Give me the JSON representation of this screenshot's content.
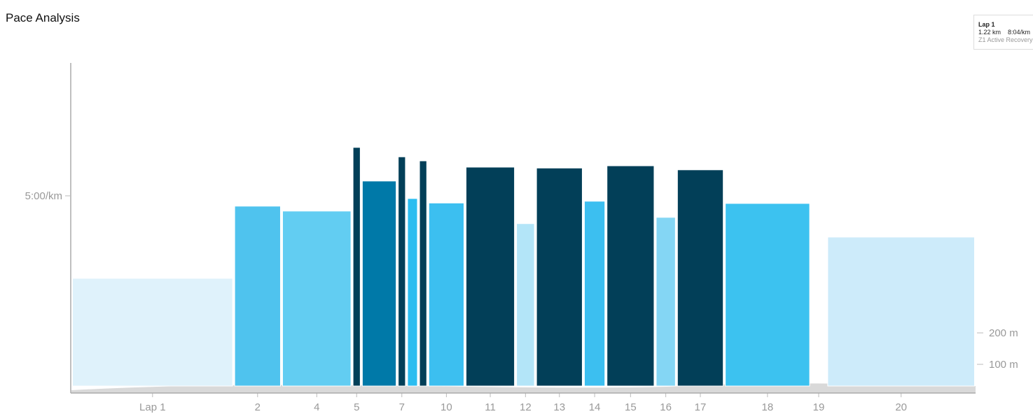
{
  "title": "Pace Analysis",
  "tooltip": {
    "lap": "Lap 1",
    "distance": "1.22 km",
    "pace": "8:04/km",
    "zone": "Z1 Active Recovery"
  },
  "chart_data": {
    "type": "bar",
    "title": "Pace Analysis",
    "y_left": {
      "ticks": [
        {
          "label": "5:00/km",
          "pace_s": 300
        }
      ]
    },
    "y_right": {
      "ticks": [
        {
          "label": "200 m",
          "value": 200
        },
        {
          "label": "100 m",
          "value": 100
        }
      ]
    },
    "laps": [
      {
        "label": "Lap 1",
        "distance_km": 1.22,
        "pace_s": 484,
        "color": "#dff2fb"
      },
      {
        "label": "2",
        "distance_km": 0.36,
        "pace_s": 323,
        "color": "#4fc3ee"
      },
      {
        "label": "",
        "distance_km": 0.0,
        "pace_s": 0,
        "color": "#ffffff"
      },
      {
        "label": "4",
        "distance_km": 0.53,
        "pace_s": 334,
        "color": "#62cdf2"
      },
      {
        "label": "5",
        "distance_km": 0.07,
        "pace_s": 192,
        "color": "#023f58"
      },
      {
        "label": "",
        "distance_km": 0.27,
        "pace_s": 267,
        "color": "#0079a8"
      },
      {
        "label": "7",
        "distance_km": 0.07,
        "pace_s": 213,
        "color": "#023f58"
      },
      {
        "label": "",
        "distance_km": 0.09,
        "pace_s": 306,
        "color": "#2bbdf0"
      },
      {
        "label": "",
        "distance_km": 0.07,
        "pace_s": 222,
        "color": "#023f58"
      },
      {
        "label": "10",
        "distance_km": 0.28,
        "pace_s": 316,
        "color": "#3cbff0"
      },
      {
        "label": "11",
        "distance_km": 0.38,
        "pace_s": 236,
        "color": "#023f58"
      },
      {
        "label": "12",
        "distance_km": 0.15,
        "pace_s": 362,
        "color": "#b3e5f8"
      },
      {
        "label": "13",
        "distance_km": 0.36,
        "pace_s": 238,
        "color": "#023f58"
      },
      {
        "label": "14",
        "distance_km": 0.17,
        "pace_s": 312,
        "color": "#3cbff0"
      },
      {
        "label": "15",
        "distance_km": 0.37,
        "pace_s": 233,
        "color": "#023f58"
      },
      {
        "label": "16",
        "distance_km": 0.16,
        "pace_s": 348,
        "color": "#84d6f4"
      },
      {
        "label": "17",
        "distance_km": 0.36,
        "pace_s": 242,
        "color": "#023f58"
      },
      {
        "label": "18",
        "distance_km": 0.65,
        "pace_s": 317,
        "color": "#3cc2f0"
      },
      {
        "label": "19",
        "distance_km": 0.12,
        "pace_s": 0,
        "color": "#ffffff"
      },
      {
        "label": "20",
        "distance_km": 1.12,
        "pace_s": 392,
        "color": "#cdebfa"
      }
    ],
    "elevation_color": "#d9d9d9",
    "grid": false
  }
}
